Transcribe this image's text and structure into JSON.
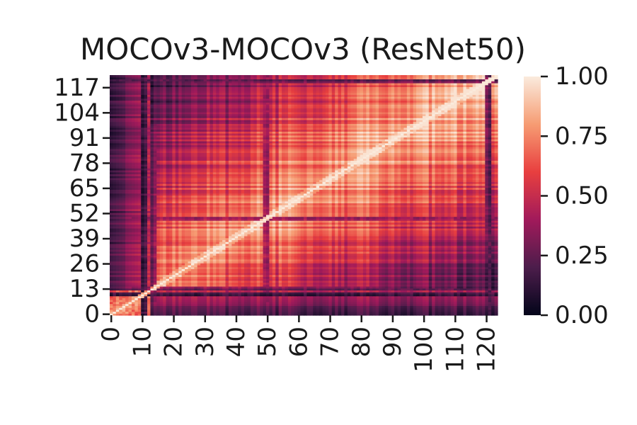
{
  "chart_data": {
    "type": "heatmap",
    "title": "MOCOv3-MOCOv3 (ResNet50)",
    "xlabel": "",
    "ylabel": "",
    "n": 124,
    "x_ticks": [
      0,
      10,
      20,
      30,
      40,
      50,
      60,
      70,
      80,
      90,
      100,
      110,
      120
    ],
    "y_ticks": [
      0,
      13,
      26,
      39,
      52,
      65,
      78,
      91,
      104,
      117
    ],
    "colorbar": {
      "ticks": [
        "0.00",
        "0.25",
        "0.50",
        "0.75",
        "1.00"
      ],
      "range": [
        0,
        1
      ],
      "colormap": "rocket",
      "colors": [
        "#03051a",
        "#4c1d4b",
        "#a11a5b",
        "#e83f3f",
        "#f69c73",
        "#faebdd"
      ]
    },
    "diagonal_value": 1.0,
    "block_structure": "early layers 0-12 form a high-similarity block; layers ~13-124 share moderate-to-high similarity increasing toward the upper-right; dark stripes near rows/cols ~10, ~13, ~50, ~120"
  }
}
